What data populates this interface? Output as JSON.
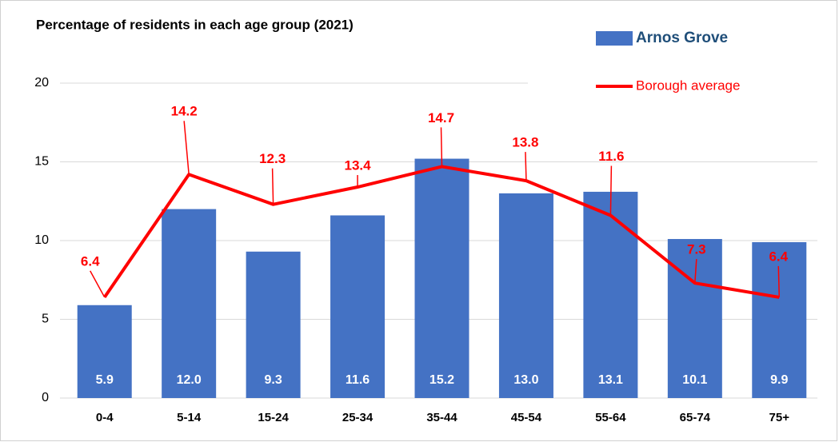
{
  "chart_data": {
    "type": "bar",
    "title": "Percentage of residents in each age group (2021)",
    "categories": [
      "0-4",
      "5-14",
      "15-24",
      "25-34",
      "35-44",
      "45-54",
      "55-64",
      "65-74",
      "75+"
    ],
    "series": [
      {
        "name": "Arnos Grove",
        "type": "bar",
        "color": "#4472c4",
        "values": [
          5.9,
          12.0,
          9.3,
          11.6,
          15.2,
          13.0,
          13.1,
          10.1,
          9.9
        ],
        "value_labels": [
          "5.9",
          "12.0",
          "9.3",
          "11.6",
          "15.2",
          "13.0",
          "13.1",
          "10.1",
          "9.9"
        ]
      },
      {
        "name": "Borough average",
        "type": "line",
        "color": "#ff0000",
        "values": [
          6.4,
          14.2,
          12.3,
          13.4,
          14.7,
          13.8,
          11.6,
          7.3,
          6.4
        ]
      }
    ],
    "ylim": [
      0,
      20
    ],
    "yticks": [
      0,
      5,
      10,
      15,
      20
    ],
    "grid": true,
    "legend": "top-right"
  }
}
